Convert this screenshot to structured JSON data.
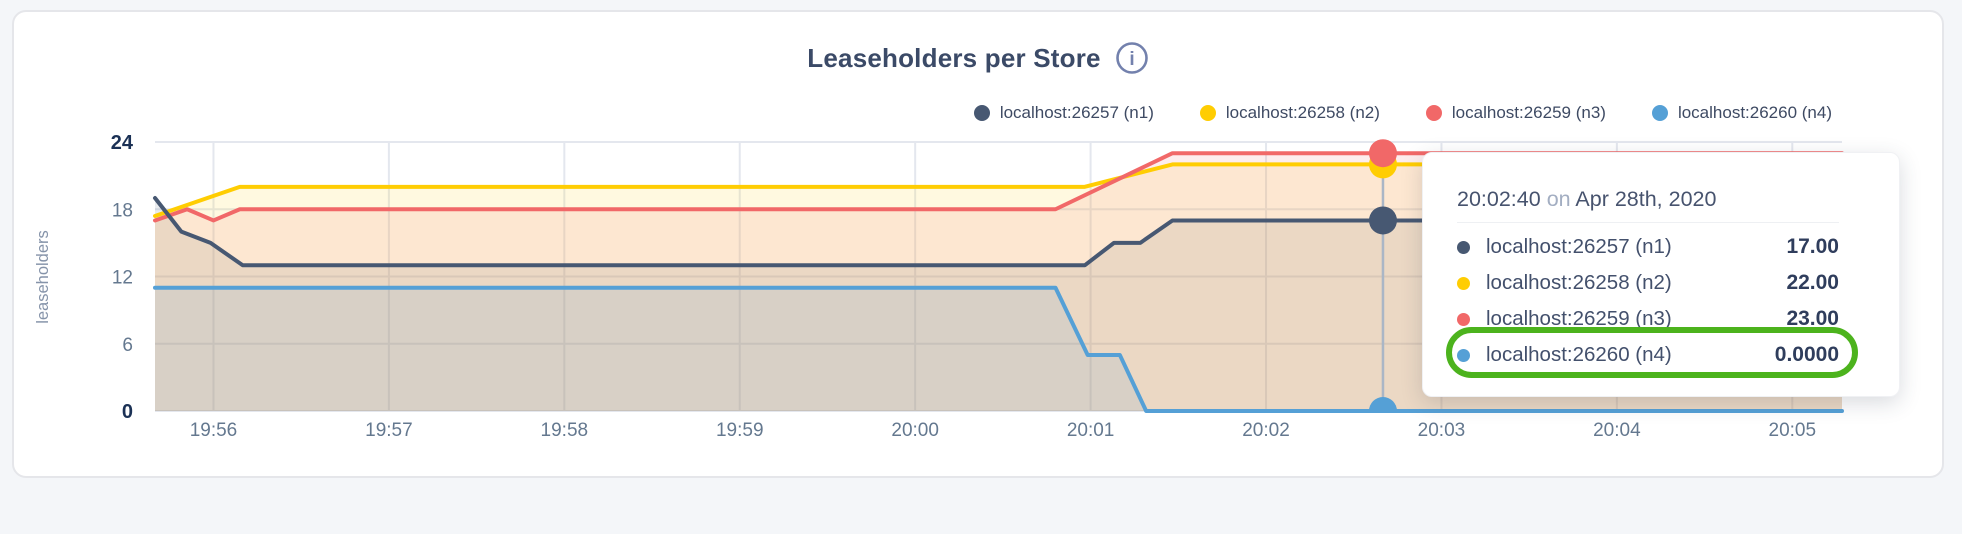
{
  "header": {
    "title": "Leaseholders per Store",
    "info_icon": "i"
  },
  "colors": {
    "page_bg": "#f4f6f9",
    "card_bg": "#ffffff",
    "card_border": "#e5e6ea",
    "title_text": "#3b4a67",
    "info_icon": "#7381ad",
    "grid": "#e4e7ee",
    "hover_line": "#aab6c6",
    "axis_tick": "#64788f",
    "axis_tick_bold": "#1b3155",
    "axis_title": "#8593a9",
    "annotation": "#4cb31d"
  },
  "legend": {
    "items": [
      {
        "label": "localhost:26257 (n1)",
        "color": "#475872"
      },
      {
        "label": "localhost:26258 (n2)",
        "color": "#ffcd02"
      },
      {
        "label": "localhost:26259 (n3)",
        "color": "#f16868"
      },
      {
        "label": "localhost:26260 (n4)",
        "color": "#55a0d6"
      }
    ]
  },
  "chart_data": {
    "type": "area",
    "title": "Leaseholders per Store",
    "ylabel": "leaseholders",
    "ylim": [
      0,
      24
    ],
    "y_ticks": [
      0,
      6,
      12,
      18,
      24
    ],
    "y_ticks_bold": [
      0,
      24
    ],
    "x_unit": "seconds since 19:55:40 on Apr 28th, 2020",
    "x_domain_seconds": [
      0,
      577
    ],
    "x_ticks": [
      {
        "sec": 20,
        "label": "19:56"
      },
      {
        "sec": 80,
        "label": "19:57"
      },
      {
        "sec": 140,
        "label": "19:58"
      },
      {
        "sec": 200,
        "label": "19:59"
      },
      {
        "sec": 260,
        "label": "20:00"
      },
      {
        "sec": 320,
        "label": "20:01"
      },
      {
        "sec": 380,
        "label": "20:02"
      },
      {
        "sec": 440,
        "label": "20:03"
      },
      {
        "sec": 500,
        "label": "20:04"
      },
      {
        "sec": 560,
        "label": "20:05"
      }
    ],
    "fill_opacity": 0.12,
    "series": [
      {
        "id": "n1",
        "name": "localhost:26257 (n1)",
        "color": "#475872",
        "points_sec_value": [
          [
            0,
            19
          ],
          [
            9,
            16
          ],
          [
            19,
            15
          ],
          [
            30,
            13
          ],
          [
            318,
            13
          ],
          [
            328,
            15
          ],
          [
            337,
            15
          ],
          [
            348,
            17
          ],
          [
            577,
            17
          ]
        ]
      },
      {
        "id": "n2",
        "name": "localhost:26258 (n2)",
        "color": "#ffcd02",
        "points_sec_value": [
          [
            0,
            17.4
          ],
          [
            29,
            20
          ],
          [
            318,
            20
          ],
          [
            348,
            22
          ],
          [
            577,
            22
          ]
        ]
      },
      {
        "id": "n3",
        "name": "localhost:26259 (n3)",
        "color": "#f16868",
        "points_sec_value": [
          [
            0,
            17
          ],
          [
            11,
            18
          ],
          [
            20,
            17
          ],
          [
            29,
            18
          ],
          [
            308,
            18
          ],
          [
            348,
            23
          ],
          [
            577,
            23
          ]
        ]
      },
      {
        "id": "n4",
        "name": "localhost:26260 (n4)",
        "color": "#55a0d6",
        "points_sec_value": [
          [
            0,
            11
          ],
          [
            308,
            11
          ],
          [
            319,
            5
          ],
          [
            330,
            5
          ],
          [
            339,
            0
          ],
          [
            577,
            0
          ]
        ]
      }
    ],
    "hover": {
      "sec": 420,
      "time_label": "20:02:40",
      "marker_values": {
        "n1": 17,
        "n2": 22,
        "n3": 23,
        "n4": 0
      }
    },
    "legend_position": "top-right",
    "grid": true
  },
  "tooltip": {
    "time": "20:02:40",
    "connector": "on",
    "date": "Apr 28th, 2020",
    "rows": [
      {
        "label": "localhost:26257 (n1)",
        "value": "17.00",
        "color": "#475872",
        "highlighted": false
      },
      {
        "label": "localhost:26258 (n2)",
        "value": "22.00",
        "color": "#ffcd02",
        "highlighted": false
      },
      {
        "label": "localhost:26259 (n3)",
        "value": "23.00",
        "color": "#f16868",
        "highlighted": false
      },
      {
        "label": "localhost:26260 (n4)",
        "value": "0.0000",
        "color": "#55a0d6",
        "highlighted": true
      }
    ],
    "highlight_color": "#4cb31d"
  }
}
